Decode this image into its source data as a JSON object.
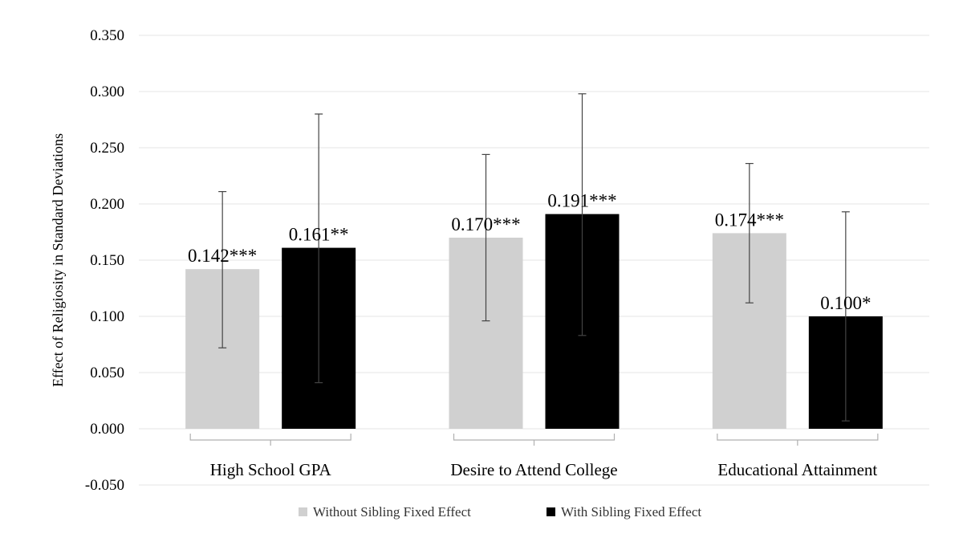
{
  "chart_data": {
    "type": "bar",
    "ylabel": "Effect of Religiosity in Standard Deviations",
    "ylim": [
      -0.05,
      0.35
    ],
    "yticks": [
      "0.350",
      "0.300",
      "0.250",
      "0.200",
      "0.150",
      "0.100",
      "0.050",
      "0.000",
      "-0.050"
    ],
    "ytick_values": [
      0.35,
      0.3,
      0.25,
      0.2,
      0.15,
      0.1,
      0.05,
      0.0,
      -0.05
    ],
    "grid": true,
    "legend_position": "bottom",
    "categories": [
      "High School GPA",
      "Desire to Attend College",
      "Educational Attainment"
    ],
    "series": [
      {
        "name": "Without Sibling Fixed Effect",
        "color": "#d0d0d0",
        "values": [
          0.142,
          0.17,
          0.174
        ],
        "labels": [
          "0.142***",
          "0.170***",
          "0.174***"
        ],
        "error_low": [
          0.072,
          0.096,
          0.112
        ],
        "error_high": [
          0.211,
          0.244,
          0.236
        ]
      },
      {
        "name": "With Sibling Fixed Effect",
        "color": "#000000",
        "values": [
          0.161,
          0.191,
          0.1
        ],
        "labels": [
          "0.161**",
          "0.191***",
          "0.100*"
        ],
        "error_low": [
          0.041,
          0.083,
          0.007
        ],
        "error_high": [
          0.28,
          0.298,
          0.193
        ]
      }
    ]
  }
}
